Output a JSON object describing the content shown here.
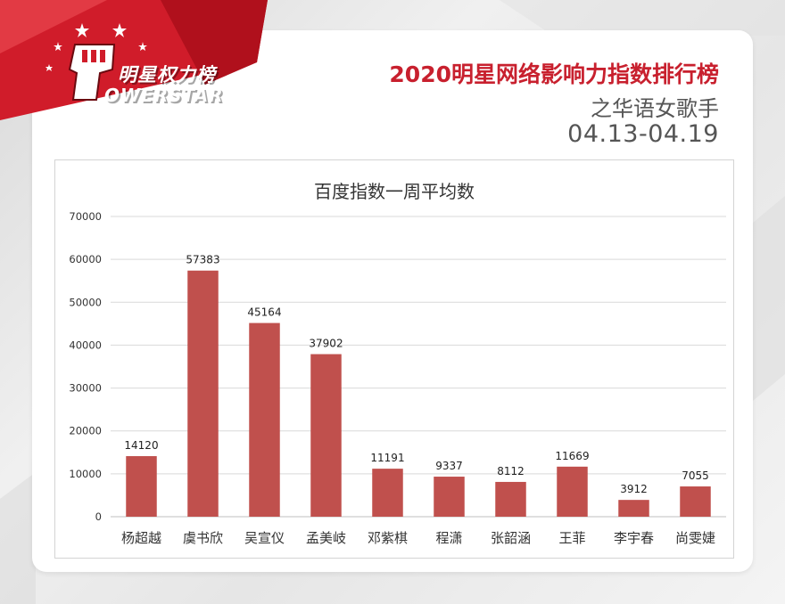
{
  "logo": {
    "text_cn": "明星权力榜",
    "text_en": "OWERSTAR"
  },
  "header": {
    "title": "2020明星网络影响力指数排行榜",
    "subtitle": "之华语女歌手",
    "date_range": "04.13-04.19"
  },
  "colors": {
    "bar": "#c0504d",
    "title_red": "#c8202e",
    "banner_red": "#d01c2a"
  },
  "chart_data": {
    "type": "bar",
    "title": "百度指数一周平均数",
    "xlabel": "",
    "ylabel": "",
    "categories": [
      "杨超越",
      "虞书欣",
      "吴宣仪",
      "孟美岐",
      "邓紫棋",
      "程潇",
      "张韶涵",
      "王菲",
      "李宇春",
      "尚雯婕"
    ],
    "values": [
      14120,
      57383,
      45164,
      37902,
      11191,
      9337,
      8112,
      11669,
      3912,
      7055
    ],
    "value_labels": [
      "14120",
      "57383",
      "45164",
      "37902",
      "11191",
      "9337",
      "8112",
      "11669",
      "3912",
      "7055"
    ],
    "ylim": [
      0,
      70000
    ],
    "yticks": [
      0,
      10000,
      20000,
      30000,
      40000,
      50000,
      60000,
      70000
    ],
    "ytick_labels": [
      "0",
      "10000",
      "20000",
      "30000",
      "40000",
      "50000",
      "60000",
      "70000"
    ],
    "grid": true,
    "legend": "none"
  }
}
